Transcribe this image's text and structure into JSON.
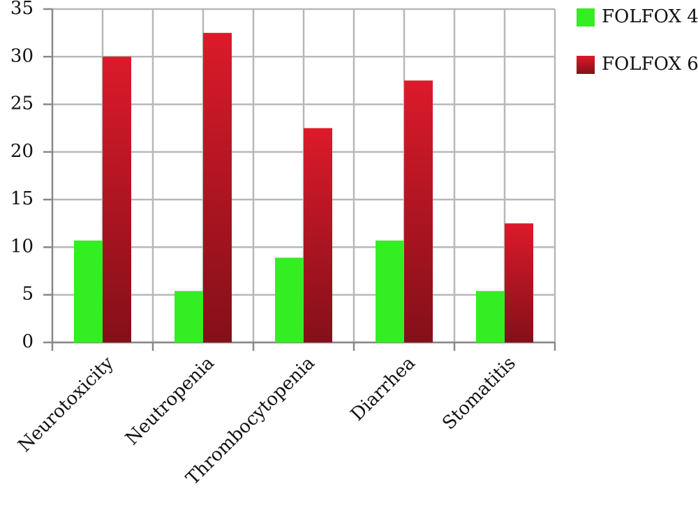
{
  "chart_data": {
    "type": "bar",
    "categories": [
      "Neurotoxicity",
      "Neutropenia",
      "Thrombocytopenia",
      "Diarrhea",
      "Stomatitis"
    ],
    "series": [
      {
        "name": "FOLFOX 4",
        "color": "#33ee22",
        "values": [
          10.7,
          5.4,
          8.9,
          10.7,
          5.4
        ]
      },
      {
        "name": "FOLFOX 6",
        "color": "#dc1a2a",
        "values": [
          30,
          32.5,
          22.5,
          27.5,
          12.5
        ]
      }
    ],
    "ylim": [
      0,
      35
    ],
    "yticks": [
      0,
      5,
      10,
      15,
      20,
      25,
      30,
      35
    ],
    "grid": true,
    "legend": "right-top"
  }
}
